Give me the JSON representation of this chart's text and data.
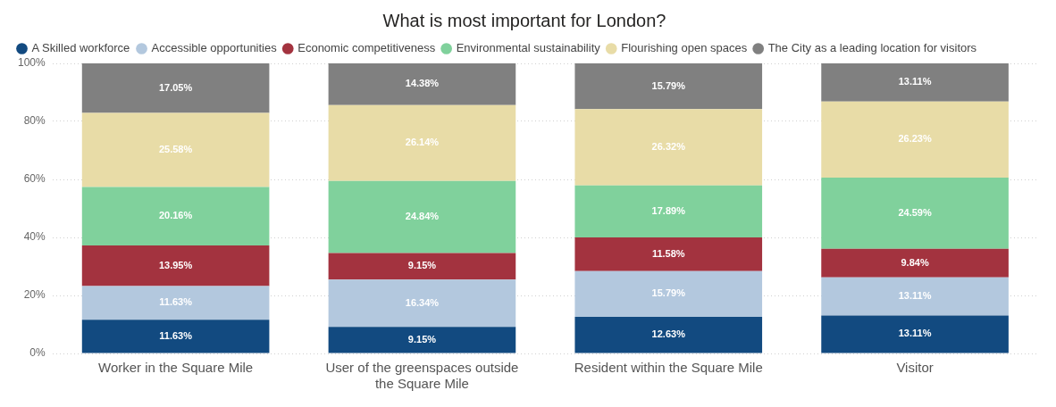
{
  "chart_data": {
    "type": "bar",
    "title": "What is most important for London?",
    "stacked": true,
    "categories": [
      "Worker in the Square Mile",
      "User of the greenspaces outside the Square Mile",
      "Resident within the Square Mile",
      "Visitor"
    ],
    "series": [
      {
        "name": "A Skilled workforce",
        "color": "#124a80",
        "values": [
          11.63,
          9.15,
          12.63,
          13.11
        ],
        "value_labels": [
          "11.63%",
          "9.15%",
          "12.63%",
          "13.11%"
        ]
      },
      {
        "name": "Accessible opportunities",
        "color": "#b3c8de",
        "values": [
          11.63,
          16.34,
          15.79,
          13.11
        ],
        "value_labels": [
          "11.63%",
          "16.34%",
          "15.79%",
          "13.11%"
        ]
      },
      {
        "name": "Economic competitiveness",
        "color": "#a3333f",
        "values": [
          13.95,
          9.15,
          11.58,
          9.84
        ],
        "value_labels": [
          "13.95%",
          "9.15%",
          "11.58%",
          "9.84%"
        ]
      },
      {
        "name": "Environmental sustainability",
        "color": "#80d19c",
        "values": [
          20.16,
          24.84,
          17.89,
          24.59
        ],
        "value_labels": [
          "20.16%",
          "24.84%",
          "17.89%",
          "24.59%"
        ]
      },
      {
        "name": "Flourishing open spaces",
        "color": "#e8dca7",
        "values": [
          25.58,
          26.14,
          26.32,
          26.23
        ],
        "value_labels": [
          "25.58%",
          "26.14%",
          "26.32%",
          "26.23%"
        ]
      },
      {
        "name": "The City as a leading location for visitors",
        "color": "#808080",
        "values": [
          17.05,
          14.38,
          15.79,
          13.11
        ],
        "value_labels": [
          "17.05%",
          "14.38%",
          "15.79%",
          "13.11%"
        ]
      }
    ],
    "ylim": [
      0,
      100
    ],
    "yticks": [
      {
        "value": 0,
        "label": "0%"
      },
      {
        "value": 20,
        "label": "20%"
      },
      {
        "value": 40,
        "label": "40%"
      },
      {
        "value": 60,
        "label": "60%"
      },
      {
        "value": 80,
        "label": "80%"
      },
      {
        "value": 100,
        "label": "100%"
      }
    ],
    "grid": "y",
    "legend": "top left"
  }
}
